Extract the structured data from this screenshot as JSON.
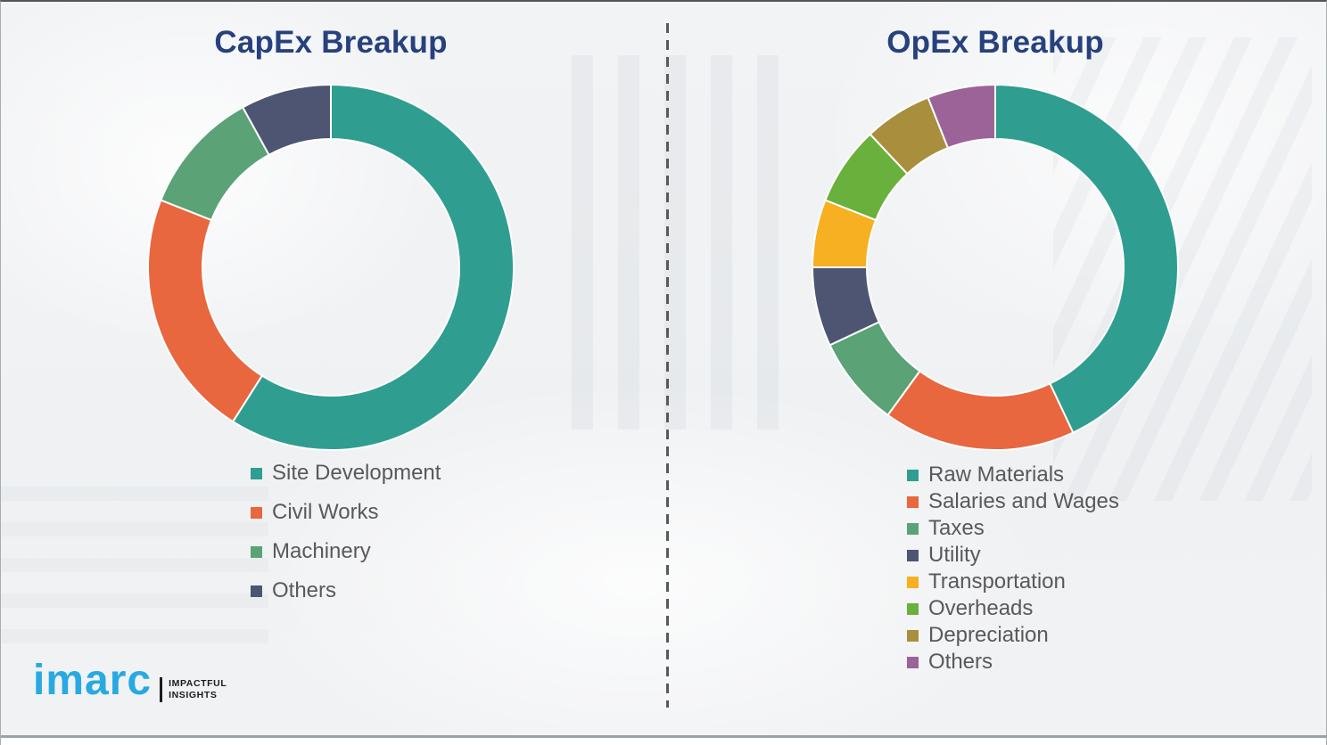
{
  "chart_data": [
    {
      "type": "pie",
      "subtype": "donut",
      "title": "CapEx Breakup",
      "categories": [
        "Site Development",
        "Civil Works",
        "Machinery",
        "Others"
      ],
      "values": [
        59,
        22,
        11,
        8
      ],
      "values_are_estimates": true,
      "colors": [
        "#2f9e90",
        "#e8673f",
        "#5ba277",
        "#4d5572"
      ],
      "start_angle_deg": 0,
      "direction": "clockwise",
      "legend_position": "below-left",
      "title_color": "#27417e"
    },
    {
      "type": "pie",
      "subtype": "donut",
      "title": "OpEx Breakup",
      "categories": [
        "Raw Materials",
        "Salaries and Wages",
        "Taxes",
        "Utility",
        "Transportation",
        "Overheads",
        "Depreciation",
        "Others"
      ],
      "values": [
        43,
        17,
        8,
        7,
        6,
        7,
        6,
        6
      ],
      "values_are_estimates": true,
      "colors": [
        "#2f9e90",
        "#e8673f",
        "#5ba277",
        "#4d5572",
        "#f6b021",
        "#6ab03c",
        "#a98e3e",
        "#9c6399"
      ],
      "start_angle_deg": 0,
      "direction": "clockwise",
      "legend_position": "below-left",
      "title_color": "#27417e"
    }
  ],
  "logo": {
    "brand": "imarc",
    "tagline_line1": "IMPACTFUL",
    "tagline_line2": "INSIGHTS",
    "brand_color": "#29a9e1"
  }
}
